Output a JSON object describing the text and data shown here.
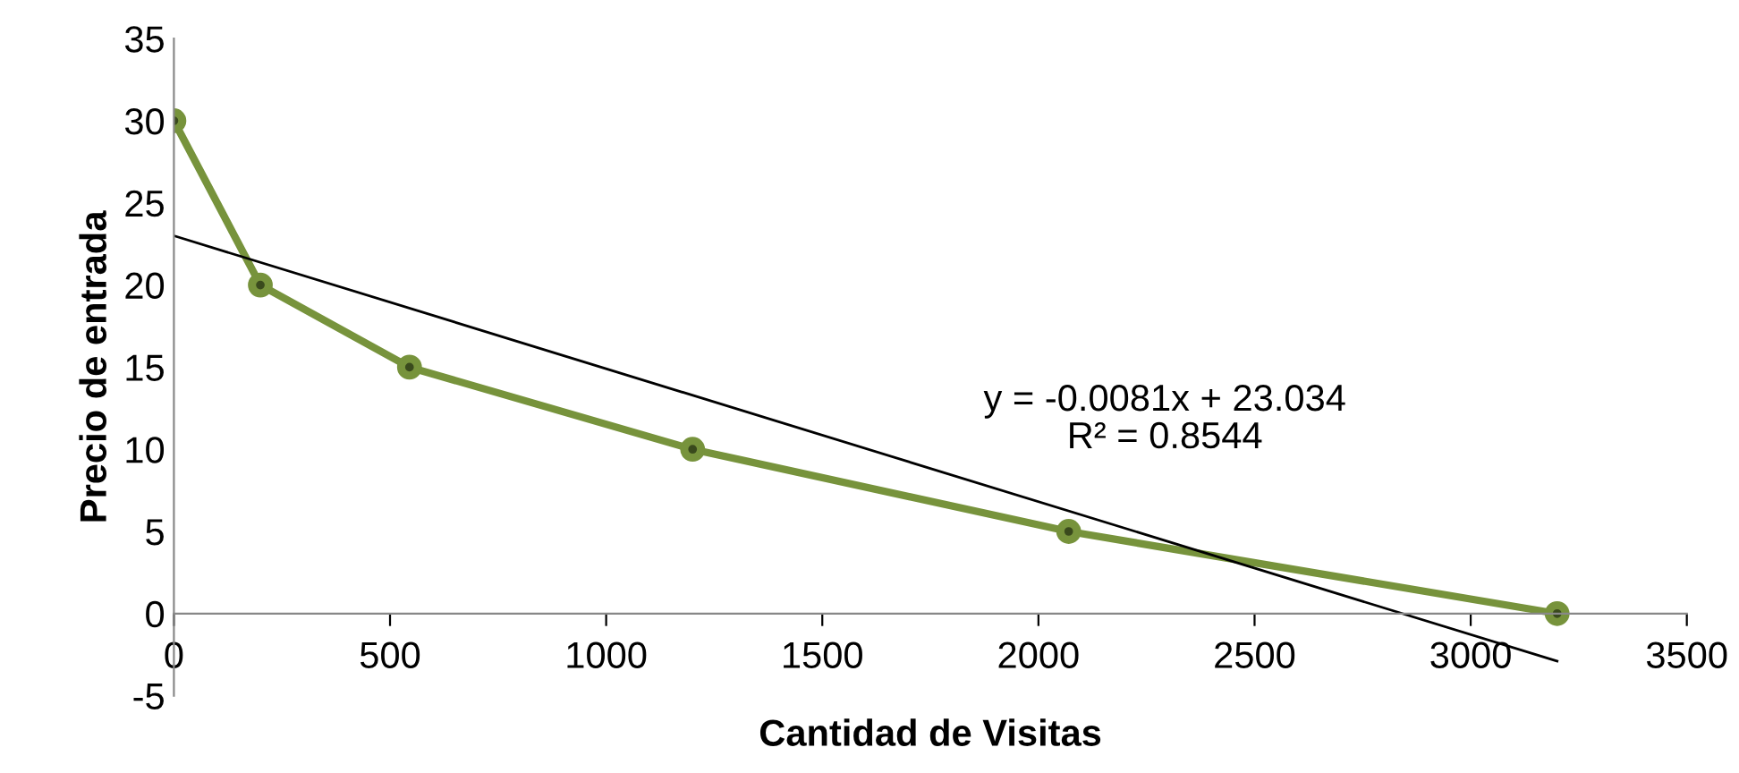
{
  "chart_data": {
    "type": "line",
    "xlabel": "Cantidad de Visitas",
    "ylabel": "Precio de entrada",
    "series": [
      {
        "type": "line",
        "color": "#77933c",
        "marker": "circle",
        "x": [
          0,
          200,
          545,
          1200,
          2070,
          3200
        ],
        "values": [
          30,
          20,
          15,
          10,
          5,
          0
        ]
      },
      {
        "type": "line",
        "color": "#000000",
        "marker": "none",
        "x": [
          0,
          3200
        ],
        "values": [
          23.0,
          -2.9
        ]
      }
    ],
    "annotations": [
      "y = -0.0081x + 23.034\nR² = 0.8544"
    ],
    "xlim": [
      0,
      3500
    ],
    "xticks": [
      0,
      500,
      1000,
      1500,
      2000,
      2500,
      3000,
      3500
    ],
    "ylim": [
      -5,
      35
    ],
    "yticks": [
      -5,
      0,
      5,
      10,
      15,
      20,
      25,
      30,
      35
    ],
    "grid": false,
    "legend": false
  }
}
